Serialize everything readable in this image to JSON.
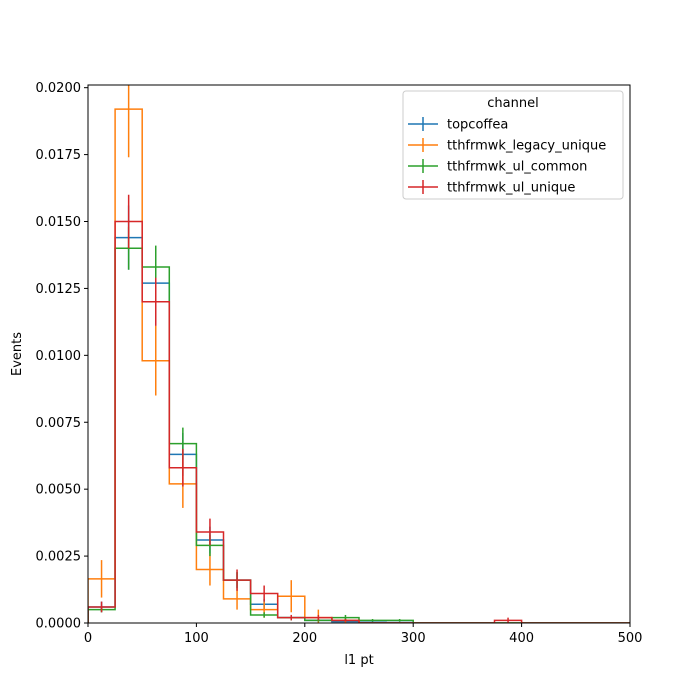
{
  "chart_data": {
    "type": "step-histogram",
    "xlabel": "l1 pt",
    "ylabel": "Events",
    "xlim": [
      0,
      500
    ],
    "ylim": [
      0,
      0.0201
    ],
    "x_ticks": [
      0,
      100,
      200,
      300,
      400,
      500
    ],
    "x_tick_labels": [
      "0",
      "100",
      "200",
      "300",
      "400",
      "500"
    ],
    "y_ticks": [
      0,
      0.0025,
      0.005,
      0.0075,
      0.01,
      0.0125,
      0.015,
      0.0175,
      0.02
    ],
    "y_tick_labels": [
      "0.0000",
      "0.0025",
      "0.0050",
      "0.0075",
      "0.0100",
      "0.0125",
      "0.0150",
      "0.0175",
      "0.0200"
    ],
    "bin_edges": [
      0,
      25,
      50,
      75,
      100,
      125,
      150,
      175,
      200,
      225,
      250,
      275,
      300,
      325,
      350,
      375,
      400,
      425,
      450,
      475,
      500
    ],
    "legend": {
      "title": "channel",
      "location": "upper right"
    },
    "series": [
      {
        "name": "topcoffea",
        "color": "#1f77b4",
        "values": [
          0.0006,
          0.0144,
          0.0127,
          0.0063,
          0.0031,
          0.0016,
          0.0007,
          0.0002,
          0.0001,
          5e-05,
          3e-05,
          2e-05,
          0,
          0,
          0,
          0,
          0,
          0,
          0,
          0
        ],
        "errors": [
          0.0002,
          0.0012,
          0.0011,
          0.0008,
          0.0005,
          0.0003,
          0.0002,
          0.0001,
          5e-05,
          3e-05,
          2e-05,
          1e-05,
          0,
          0,
          0,
          0,
          0,
          0,
          0,
          0
        ]
      },
      {
        "name": "tthfrmwk_legacy_unique",
        "color": "#ff7f0e",
        "values": [
          0.00165,
          0.0192,
          0.0098,
          0.0052,
          0.002,
          0.0009,
          0.0005,
          0.001,
          0.0002,
          0.0001,
          0,
          0,
          0,
          0,
          0,
          0,
          0,
          0,
          0,
          0
        ],
        "errors": [
          0.0007,
          0.0018,
          0.0013,
          0.0009,
          0.0006,
          0.0004,
          0.0003,
          0.0006,
          0.0003,
          0.0001,
          0,
          0,
          0,
          0,
          0,
          0,
          0,
          0,
          0,
          0
        ]
      },
      {
        "name": "tthfrmwk_ul_common",
        "color": "#2ca02c",
        "values": [
          0.0005,
          0.014,
          0.0133,
          0.0067,
          0.0029,
          0.0016,
          0.0003,
          0.0002,
          0.0001,
          0.0002,
          0.0001,
          0.0001,
          0,
          0,
          0,
          0,
          0,
          0,
          0,
          0
        ],
        "errors": [
          0.0001,
          0.0008,
          0.0008,
          0.0006,
          0.0004,
          0.0003,
          0.0001,
          0.0001,
          5e-05,
          0.0001,
          5e-05,
          5e-05,
          0,
          0,
          0,
          0,
          0,
          0,
          0,
          0
        ],
        "markers": "all"
      },
      {
        "name": "tthfrmwk_ul_unique",
        "color": "#d62728",
        "values": [
          0.0006,
          0.015,
          0.012,
          0.0058,
          0.0034,
          0.0016,
          0.0011,
          0.0002,
          0.0002,
          0.0001,
          0,
          0,
          0,
          0,
          0,
          0.0001,
          0,
          0,
          0,
          0
        ],
        "errors": [
          0.0002,
          0.001,
          0.0009,
          0.0007,
          0.0005,
          0.0004,
          0.0003,
          0.0001,
          0.0001,
          5e-05,
          0,
          0,
          0,
          0,
          0,
          0.0001,
          0,
          0,
          0,
          0
        ]
      }
    ]
  }
}
